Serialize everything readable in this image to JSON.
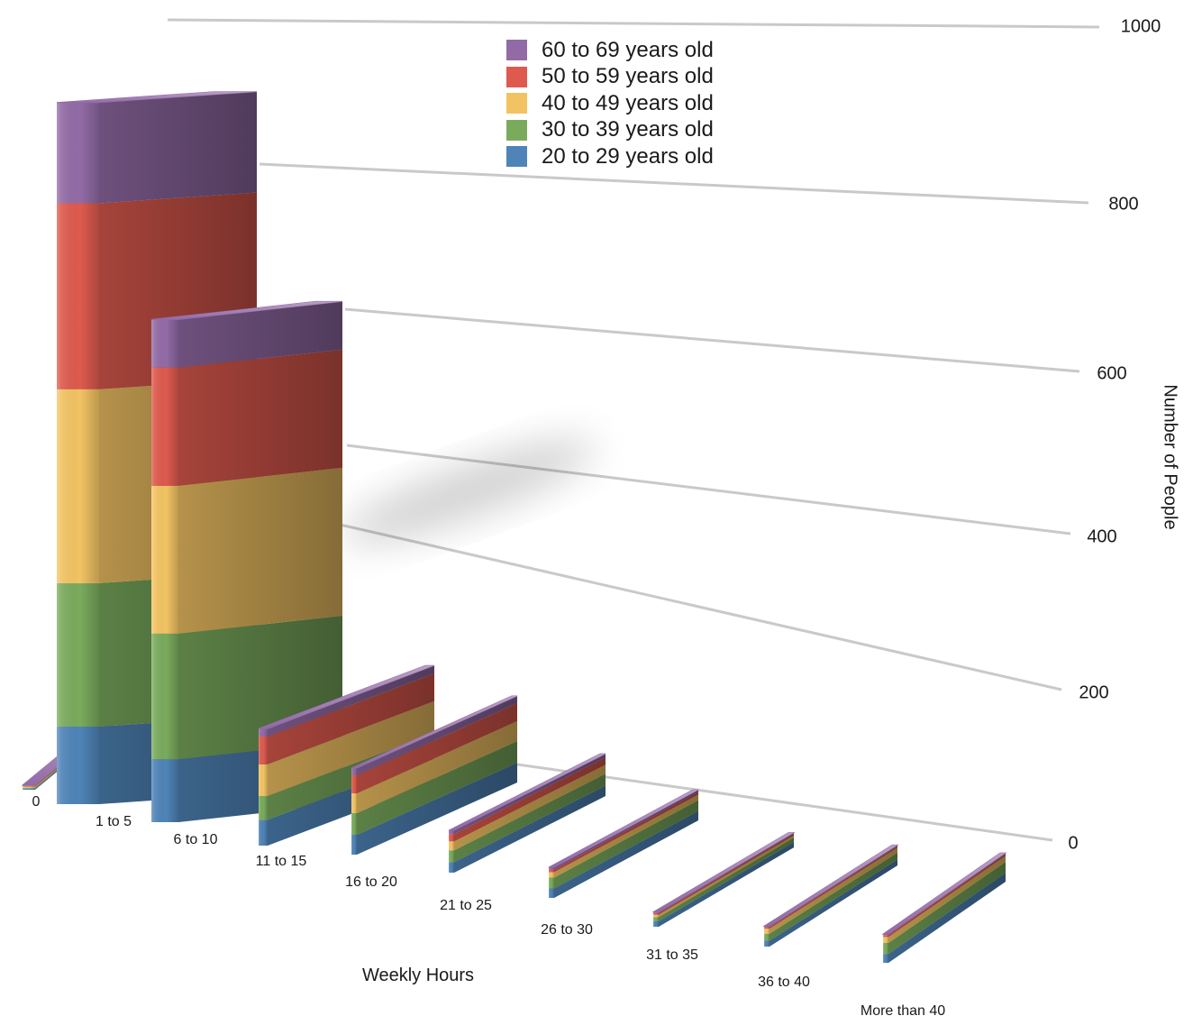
{
  "chart_data": {
    "type": "bar",
    "stacked": true,
    "three_d": true,
    "xlabel": "Weekly Hours",
    "ylabel": "Number of People",
    "ylim": [
      0,
      1000
    ],
    "yticks": [
      0,
      200,
      400,
      600,
      800,
      1000
    ],
    "grid": true,
    "legend_position": "top-center",
    "categories": [
      "0",
      "1 to 5",
      "6 to 10",
      "11 to 15",
      "16 to 20",
      "21 to 25",
      "26 to 30",
      "31 to 35",
      "36 to 40",
      "More than 40"
    ],
    "series": [
      {
        "name": "20 to 29 years old",
        "color": "#4f84b8",
        "values": [
          8,
          100,
          85,
          65,
          55,
          35,
          35,
          25,
          30,
          45
        ]
      },
      {
        "name": "30 to 39 years old",
        "color": "#7aab5d",
        "values": [
          8,
          185,
          170,
          60,
          60,
          40,
          40,
          20,
          35,
          55
        ]
      },
      {
        "name": "40 to 49 years old",
        "color": "#f2c363",
        "values": [
          8,
          250,
          200,
          80,
          55,
          30,
          20,
          10,
          25,
          30
        ]
      },
      {
        "name": "50 to 59 years old",
        "color": "#de5a4e",
        "values": [
          6,
          240,
          160,
          70,
          50,
          25,
          10,
          8,
          8,
          10
        ]
      },
      {
        "name": "60 to 69 years old",
        "color": "#926ba6",
        "values": [
          6,
          130,
          65,
          20,
          20,
          12,
          8,
          5,
          5,
          5
        ]
      }
    ]
  }
}
